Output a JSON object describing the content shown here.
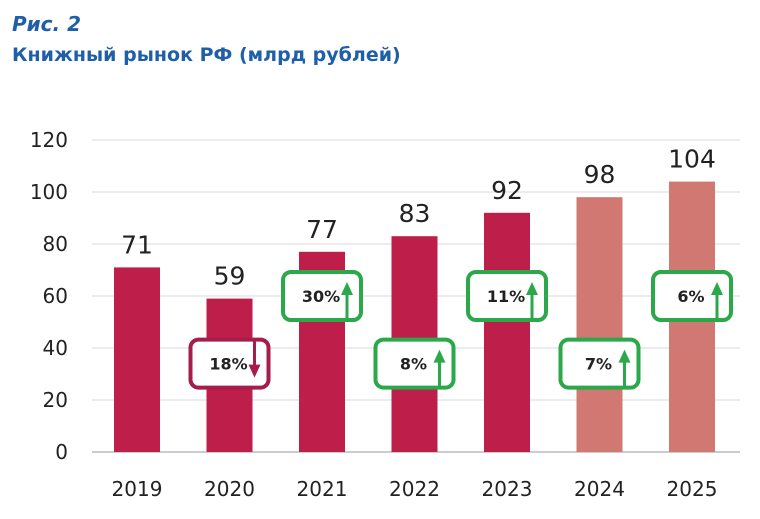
{
  "figure": {
    "label": "Рис. 2",
    "title": "Книжный рынок РФ (млрд рублей)"
  },
  "chart_data": {
    "type": "bar",
    "title": "Книжный рынок РФ (млрд рублей)",
    "xlabel": "",
    "ylabel": "",
    "ylim": [
      0,
      120
    ],
    "yticks": [
      "0",
      "20",
      "40",
      "60",
      "80",
      "100",
      "120"
    ],
    "grid": true,
    "categories": [
      "2019",
      "2020",
      "2021",
      "2022",
      "2023",
      "2024",
      "2025"
    ],
    "values": [
      71,
      59,
      77,
      83,
      92,
      98,
      104
    ],
    "value_labels": [
      "71",
      "59",
      "77",
      "83",
      "92",
      "98",
      "104"
    ],
    "kind": [
      "actual",
      "actual",
      "actual",
      "actual",
      "actual",
      "forecast",
      "forecast"
    ],
    "bar_colors": {
      "actual": "#be1e4a",
      "forecast": "#d27872"
    },
    "changes": [
      null,
      {
        "text": "18%",
        "direction": "down",
        "value": -18
      },
      {
        "text": "30%",
        "direction": "up",
        "value": 30
      },
      {
        "text": "8%",
        "direction": "up",
        "value": 8
      },
      {
        "text": "11%",
        "direction": "up",
        "value": 11
      },
      {
        "text": "7%",
        "direction": "up",
        "value": 7
      },
      {
        "text": "6%",
        "direction": "up",
        "value": 6
      }
    ],
    "change_colors": {
      "up": "#2aa84a",
      "down": "#a61c4a"
    }
  }
}
